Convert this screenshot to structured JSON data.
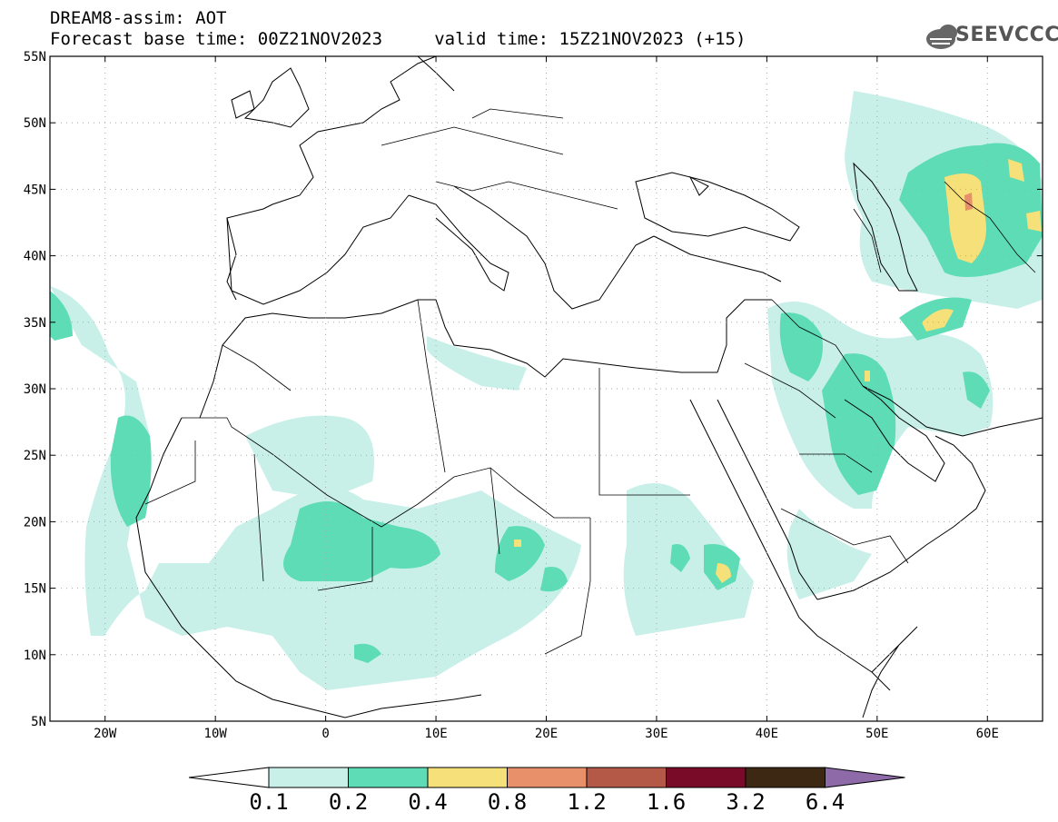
{
  "header": {
    "line1": "DREAM8-assim: AOT",
    "line2": "Forecast base time: 00Z21NOV2023     valid time: 15Z21NOV2023 (+15)"
  },
  "logo": {
    "text": "SEEVCCC",
    "icon": "cloud-logo-icon"
  },
  "map": {
    "extent": {
      "lon_min": -25,
      "lon_max": 65,
      "lat_min": 5,
      "lat_max": 55
    },
    "lat_labels": [
      "55N",
      "50N",
      "45N",
      "40N",
      "35N",
      "30N",
      "25N",
      "20N",
      "15N",
      "10N",
      "5N"
    ],
    "lat_values": [
      55,
      50,
      45,
      40,
      35,
      30,
      25,
      20,
      15,
      10,
      5
    ],
    "lon_labels": [
      "20W",
      "10W",
      "0",
      "10E",
      "20E",
      "30E",
      "40E",
      "50E",
      "60E"
    ],
    "lon_values": [
      -20,
      -10,
      0,
      10,
      20,
      30,
      40,
      50,
      60
    ],
    "grid": "dotted"
  },
  "colorbar": {
    "levels": [
      "0.1",
      "0.2",
      "0.4",
      "0.8",
      "1.2",
      "1.6",
      "3.2",
      "6.4"
    ],
    "colors": [
      "#c8f0e9",
      "#5ddcb6",
      "#f5e07a",
      "#e8906a",
      "#b45848",
      "#7a0b28",
      "#3d2814",
      "#8e6aa8"
    ],
    "under_color": "#ffffff"
  }
}
